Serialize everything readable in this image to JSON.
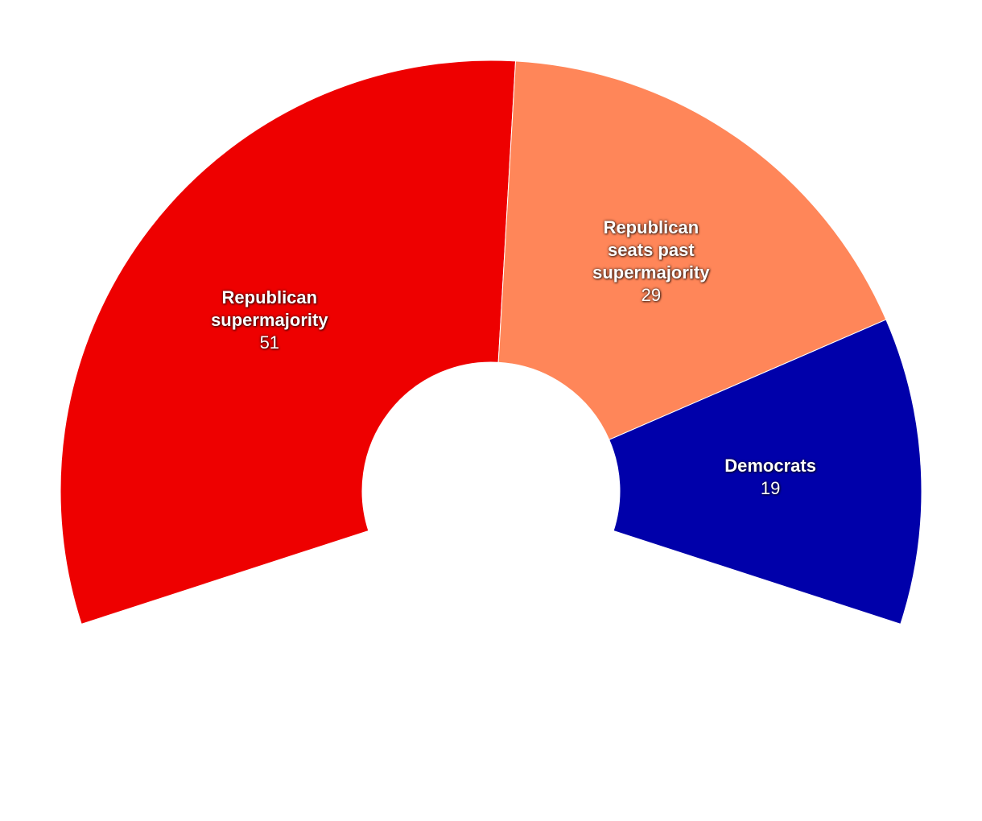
{
  "chart_data": {
    "type": "donut",
    "categories": [
      "Republican supermajority",
      "Republican seats past supermajority",
      "Democrats"
    ],
    "values": [
      51,
      29,
      19
    ],
    "colors": [
      "#ee0000",
      "#ff8659",
      "#0000aa"
    ]
  }
}
